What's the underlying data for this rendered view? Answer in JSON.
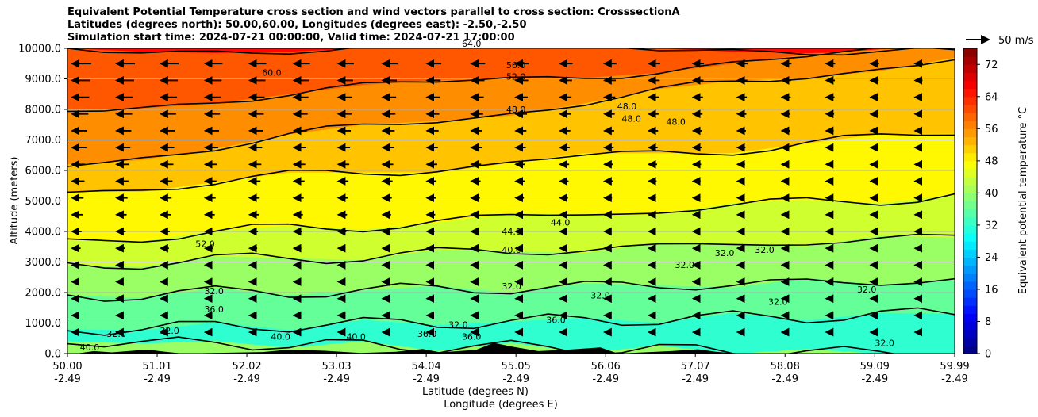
{
  "chart_data": {
    "type": "heatmap",
    "title_lines": [
      "Equivalent Potential Temperature cross section and wind vectors parallel to cross section: CrosssectionA",
      "Latitudes (degrees north): 50.00,60.00, Longitudes (degrees east): -2.50,-2.50",
      "Simulation start time: 2024-07-21 00:00:00, Valid time: 2024-07-21 17:00:00"
    ],
    "ylabel": "Altitude (meters)",
    "xlabel_1": "Latitude (degrees N)",
    "xlabel_2": "Longitude (degrees E)",
    "ylim": [
      0,
      10000
    ],
    "y_ticks": [
      "0.0",
      "1000.0",
      "2000.0",
      "3000.0",
      "4000.0",
      "5000.0",
      "6000.0",
      "7000.0",
      "8000.0",
      "9000.0",
      "10000.0"
    ],
    "x_ticks": [
      {
        "lat": "50.00",
        "lon": "-2.49"
      },
      {
        "lat": "51.01",
        "lon": "-2.49"
      },
      {
        "lat": "52.02",
        "lon": "-2.49"
      },
      {
        "lat": "53.03",
        "lon": "-2.49"
      },
      {
        "lat": "54.04",
        "lon": "-2.49"
      },
      {
        "lat": "55.05",
        "lon": "-2.49"
      },
      {
        "lat": "56.06",
        "lon": "-2.49"
      },
      {
        "lat": "57.07",
        "lon": "-2.49"
      },
      {
        "lat": "58.08",
        "lon": "-2.49"
      },
      {
        "lat": "59.09",
        "lon": "-2.49"
      },
      {
        "lat": "59.99",
        "lon": "-2.49"
      }
    ],
    "colorbar": {
      "label": "Equivalent potential temperature $^\\circ$C",
      "label_display": "Equivalent potential temperature °C",
      "range": [
        0,
        76
      ],
      "tick_labels": [
        "0",
        "8",
        "16",
        "24",
        "32",
        "40",
        "48",
        "56",
        "64",
        "72"
      ]
    },
    "quiver_key": "50 m/s",
    "field_bands": [
      {
        "theta": 60,
        "y_left": 10000,
        "y_right": 10000
      },
      {
        "theta": 56,
        "y_left": 8000,
        "y_right": 10000
      },
      {
        "theta": 52,
        "y_left": 6200,
        "y_right": 9700
      },
      {
        "theta": 48,
        "y_left": 5300,
        "y_right": 7200
      },
      {
        "theta": 44,
        "y_left": 3700,
        "y_right": 5200
      },
      {
        "theta": 40,
        "y_left": 2900,
        "y_right": 3800
      },
      {
        "theta": 36,
        "y_left": 1900,
        "y_right": 2400
      },
      {
        "theta": 32,
        "y_left": 800,
        "y_right": 1300
      },
      {
        "theta": 40,
        "y_left": 400,
        "y_right": 0
      }
    ],
    "contour_labels": [
      {
        "text": "64.0",
        "lat": 54.55,
        "alt": 10050
      },
      {
        "text": "56.0",
        "lat": 55.05,
        "alt": 9350
      },
      {
        "text": "52.0",
        "lat": 55.05,
        "alt": 8980
      },
      {
        "text": "60.0",
        "lat": 52.3,
        "alt": 9100
      },
      {
        "text": "48.0",
        "lat": 55.05,
        "alt": 7900
      },
      {
        "text": "48.0",
        "lat": 56.3,
        "alt": 8000
      },
      {
        "text": "48.0",
        "lat": 56.35,
        "alt": 7600
      },
      {
        "text": "48.0",
        "lat": 56.85,
        "alt": 7500
      },
      {
        "text": "44.0",
        "lat": 55.0,
        "alt": 3900
      },
      {
        "text": "44.0",
        "lat": 55.55,
        "alt": 4200
      },
      {
        "text": "40.0",
        "lat": 55.0,
        "alt": 3300
      },
      {
        "text": "52.0",
        "lat": 51.55,
        "alt": 3500
      },
      {
        "text": "32.0",
        "lat": 55.0,
        "alt": 2100
      },
      {
        "text": "32.0",
        "lat": 50.55,
        "alt": 550
      },
      {
        "text": "32.0",
        "lat": 51.15,
        "alt": 650
      },
      {
        "text": "32.0",
        "lat": 51.65,
        "alt": 1950
      },
      {
        "text": "36.0",
        "lat": 51.65,
        "alt": 1350
      },
      {
        "text": "40.0",
        "lat": 52.4,
        "alt": 450
      },
      {
        "text": "40.0",
        "lat": 53.25,
        "alt": 450
      },
      {
        "text": "36.0",
        "lat": 54.05,
        "alt": 550
      },
      {
        "text": "32.0",
        "lat": 54.4,
        "alt": 850
      },
      {
        "text": "36.0",
        "lat": 54.55,
        "alt": 450
      },
      {
        "text": "36.0",
        "lat": 55.5,
        "alt": 1000
      },
      {
        "text": "32.0",
        "lat": 56.0,
        "alt": 1800
      },
      {
        "text": "32.0",
        "lat": 56.95,
        "alt": 2800
      },
      {
        "text": "32.0",
        "lat": 57.4,
        "alt": 3200
      },
      {
        "text": "32.0",
        "lat": 57.85,
        "alt": 3300
      },
      {
        "text": "32.0",
        "lat": 58.0,
        "alt": 1600
      },
      {
        "text": "32.0",
        "lat": 59.0,
        "alt": 2000
      },
      {
        "text": "32.0",
        "lat": 59.2,
        "alt": 250
      },
      {
        "text": "40.0",
        "lat": 50.25,
        "alt": 100
      }
    ],
    "colors": {
      "contour": "#000000",
      "terrain": "#000000",
      "grid": "#b0b0b0"
    }
  }
}
